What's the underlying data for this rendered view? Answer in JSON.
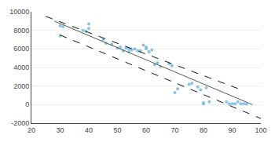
{
  "chart_data": {
    "type": "scatter",
    "series": [
      {
        "type": "scatter",
        "color": "#74b9e0",
        "marker": "circle",
        "x": [
          30,
          30,
          31,
          38,
          39,
          40,
          40,
          45,
          46,
          48,
          50,
          51,
          52,
          53,
          54,
          54,
          55,
          56,
          57,
          58,
          59,
          60,
          60,
          61,
          62,
          63,
          64,
          65,
          68,
          69,
          70,
          71,
          75,
          76,
          78,
          79,
          80,
          80,
          81,
          82,
          88,
          89,
          90,
          91,
          92,
          93,
          94,
          95
        ],
        "values": [
          7400,
          8500,
          8400,
          8000,
          7900,
          8700,
          8200,
          7000,
          6600,
          6500,
          6100,
          6200,
          5800,
          6100,
          5700,
          6000,
          5900,
          6000,
          5800,
          5800,
          6400,
          6000,
          6200,
          5700,
          5900,
          4300,
          4500,
          4100,
          4400,
          4200,
          1300,
          1700,
          2200,
          2300,
          1900,
          1600,
          200,
          100,
          1800,
          300,
          300,
          100,
          100,
          100,
          300,
          100,
          100,
          50
        ]
      },
      {
        "type": "line",
        "color": "#555555",
        "line_style": "solid",
        "x": [
          28,
          97
        ],
        "values": [
          9000,
          0
        ]
      },
      {
        "type": "line",
        "color": "#111111",
        "line_style": "dashed",
        "x": [
          25,
          94
        ],
        "values": [
          9500,
          1500
        ]
      },
      {
        "type": "line",
        "color": "#111111",
        "line_style": "dashed",
        "x": [
          30,
          100
        ],
        "values": [
          7500,
          -1500
        ]
      }
    ],
    "xlim": [
      20,
      100
    ],
    "xticks": [
      20,
      30,
      40,
      50,
      60,
      70,
      80,
      90,
      100
    ],
    "ylim": [
      -2000,
      10000
    ],
    "yticks": [
      -2000,
      0,
      2000,
      4000,
      6000,
      8000,
      10000
    ],
    "grid": "y"
  }
}
